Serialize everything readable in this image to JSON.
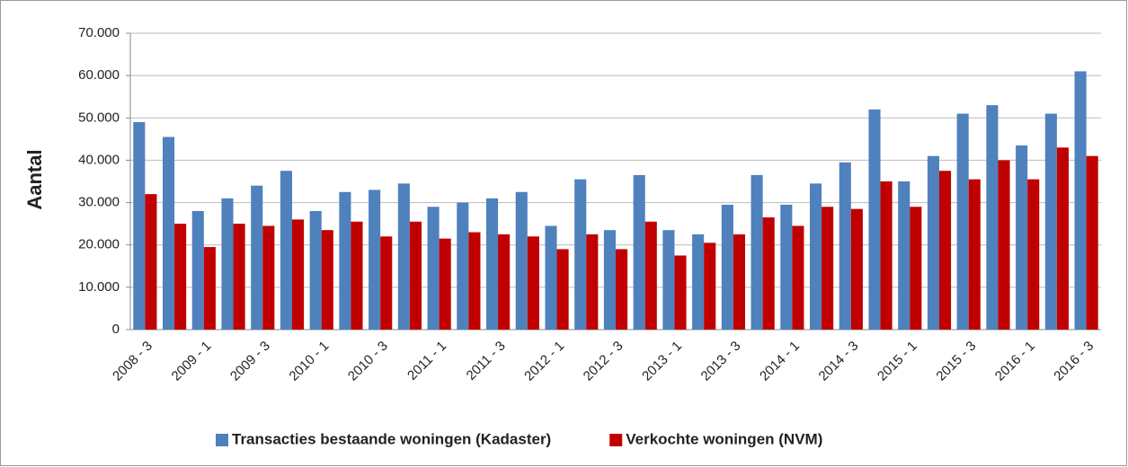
{
  "chart_data": {
    "type": "bar",
    "y_label": "Aantal",
    "categories": [
      "2008 - 3",
      null,
      "2009 - 1",
      null,
      "2009 - 3",
      null,
      "2010 - 1",
      null,
      "2010 - 3",
      null,
      "2011 - 1",
      null,
      "2011 - 3",
      null,
      "2012 - 1",
      null,
      "2012 - 3",
      null,
      "2013 - 1",
      null,
      "2013 - 3",
      null,
      "2014 - 1",
      null,
      "2014 - 3",
      null,
      "2015 - 1",
      null,
      "2015 - 3",
      null,
      "2016 - 1",
      null,
      "2016 - 3"
    ],
    "series": [
      {
        "name": "Transacties bestaande woningen (Kadaster)",
        "color": "#4f81bd",
        "values": [
          49000,
          45500,
          28000,
          31000,
          34000,
          37500,
          28000,
          32500,
          33000,
          34500,
          29000,
          30000,
          31000,
          32500,
          24500,
          35500,
          23500,
          36500,
          23500,
          22500,
          29500,
          36500,
          29500,
          34500,
          39500,
          52000,
          35000,
          41000,
          51000,
          53000,
          43500,
          51000,
          61000
        ]
      },
      {
        "name": "Verkochte woningen (NVM)",
        "color": "#c00000",
        "values": [
          32000,
          25000,
          19500,
          25000,
          24500,
          26000,
          23500,
          25500,
          22000,
          25500,
          21500,
          23000,
          22500,
          22000,
          19000,
          22500,
          19000,
          25500,
          17500,
          20500,
          22500,
          26500,
          24500,
          29000,
          28500,
          35000,
          29000,
          37500,
          35500,
          40000,
          35500,
          43000,
          41000
        ]
      }
    ],
    "ylim": [
      0,
      70000
    ],
    "yticks": [
      0,
      {
        "value": 10000,
        "label": "10.000"
      },
      {
        "value": 20000,
        "label": "20.000"
      },
      {
        "value": 30000,
        "label": "30.000"
      },
      {
        "value": 40000,
        "label": "40.000"
      },
      {
        "value": 50000,
        "label": "50.000"
      },
      {
        "value": 60000,
        "label": "60.000"
      },
      {
        "value": 70000,
        "label": "70.000"
      }
    ],
    "grid": true,
    "legend": "bottom"
  }
}
